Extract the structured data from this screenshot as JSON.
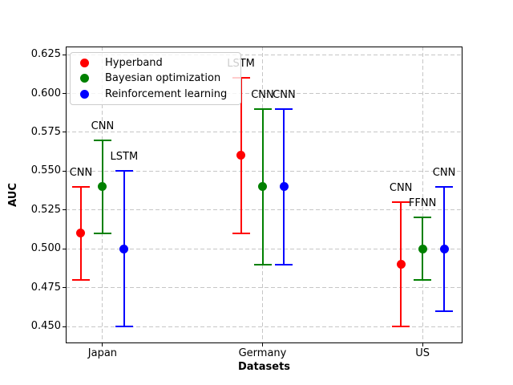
{
  "chart_data": {
    "type": "scatter",
    "subtype": "errorbar-points",
    "title": "",
    "xlabel": "Datasets",
    "ylabel": "AUC",
    "categories": [
      "Japan",
      "Germany",
      "US"
    ],
    "series": [
      {
        "name": "Hyperband",
        "color": "#ff0000",
        "offset": -0.135,
        "values": [
          0.51,
          0.56,
          0.49
        ],
        "err": [
          0.03,
          0.05,
          0.04
        ],
        "point_labels": [
          "CNN",
          "LSTM",
          "CNN"
        ]
      },
      {
        "name": "Bayesian optimization",
        "color": "#008000",
        "offset": 0,
        "values": [
          0.54,
          0.54,
          0.5
        ],
        "err": [
          0.03,
          0.05,
          0.02
        ],
        "point_labels": [
          "CNN",
          "CNN",
          "FFNN"
        ]
      },
      {
        "name": "Reinforcement learning",
        "color": "#0000ff",
        "offset": 0.135,
        "values": [
          0.5,
          0.54,
          0.5
        ],
        "err": [
          0.05,
          0.05,
          0.04
        ],
        "point_labels": [
          "LSTM",
          "CNN",
          "CNN"
        ]
      }
    ],
    "yticks": [
      0.45,
      0.475,
      0.5,
      0.525,
      0.55,
      0.575,
      0.6,
      0.625
    ],
    "ylim": [
      0.4392,
      0.6302
    ],
    "xlim": [
      -0.23,
      2.25
    ],
    "grid": true,
    "legend_position": "upper left"
  },
  "legend": {
    "items": [
      {
        "label": "Hyperband",
        "color": "#ff0000"
      },
      {
        "label": "Bayesian optimization",
        "color": "#008000"
      },
      {
        "label": "Reinforcement learning",
        "color": "#0000ff"
      }
    ]
  }
}
